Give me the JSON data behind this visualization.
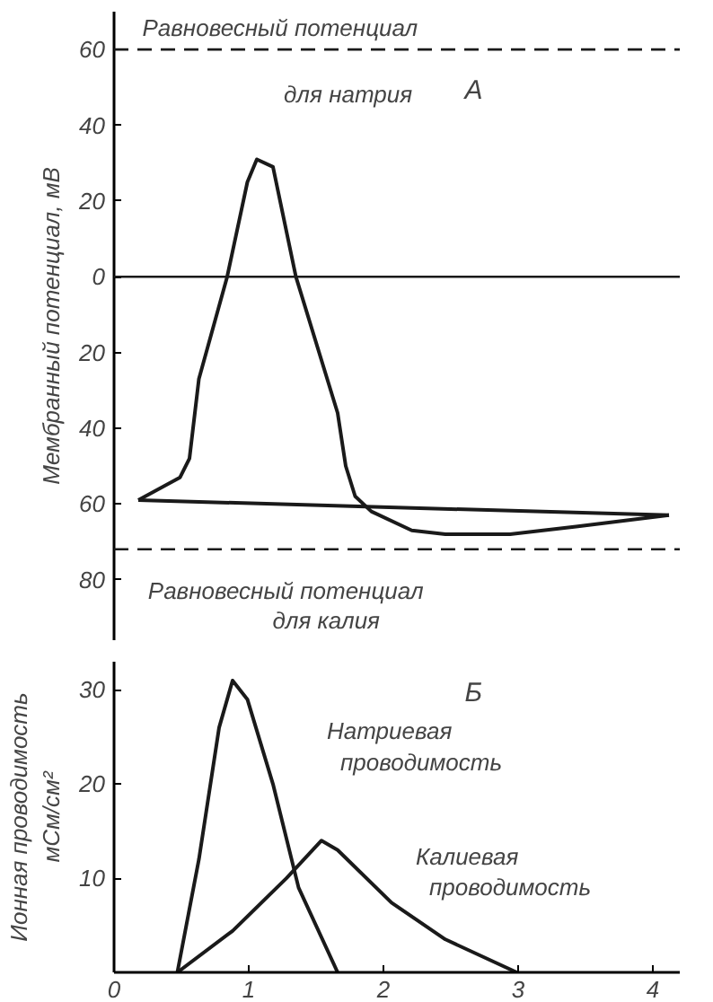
{
  "chart_data": [
    {
      "type": "line",
      "ylabel": "Мембранный потенциал, мВ",
      "annotations": [
        "А"
      ],
      "xlim": [
        0,
        4.2
      ],
      "ylim": [
        -96,
        70
      ],
      "tick_labels": "y",
      "yticks": [
        {
          "value": 60,
          "label": "60"
        },
        {
          "value": 40,
          "label": "40"
        },
        {
          "value": 20,
          "label": "20"
        },
        {
          "value": 0,
          "label": "0"
        },
        {
          "value": -20,
          "label": "20"
        },
        {
          "value": -40,
          "label": "40"
        },
        {
          "value": -60,
          "label": "60"
        },
        {
          "value": -80,
          "label": "80"
        }
      ],
      "ref_lines": [
        {
          "axis": "y",
          "value": 60,
          "label": "Равновесный потенциал для натрия",
          "line_style": "dashed"
        },
        {
          "axis": "y",
          "value": -72,
          "label": "Равновесный потенциал для калия",
          "line_style": "dashed"
        },
        {
          "axis": "y",
          "value": 0,
          "line_style": "solid"
        }
      ],
      "series": [
        {
          "color": "#1a1a1a",
          "x": [
            0.18,
            0.49,
            0.56,
            0.63,
            0.84,
            0.99,
            1.06,
            1.18,
            1.35,
            1.66,
            1.72,
            1.79,
            1.91,
            2.21,
            2.46,
            2.94,
            3.43,
            4.12
          ],
          "values": [
            -59,
            -53,
            -48,
            -27,
            0,
            25,
            31,
            29,
            0,
            -36,
            -50,
            -58,
            -62,
            -67,
            -68,
            -68,
            -66,
            -63
          ]
        },
        {
          "color": "#1a1a1a",
          "x": [
            0.18,
            4.12
          ],
          "values": [
            -59,
            -63
          ]
        }
      ]
    },
    {
      "type": "line",
      "ylabel": "Ионная проводимость мСм/см²",
      "annotations": [
        "Б"
      ],
      "xlim": [
        0,
        4.2
      ],
      "ylim": [
        0,
        33
      ],
      "xticks": [
        0,
        1,
        2,
        3,
        4
      ],
      "yticks": [
        10,
        20,
        30
      ],
      "series": [
        {
          "name": "Натриевая проводимость",
          "color": "#1a1a1a",
          "x": [
            0.47,
            0.63,
            0.78,
            0.88,
            0.99,
            1.18,
            1.37,
            1.66
          ],
          "values": [
            0,
            12,
            26,
            31,
            29,
            20,
            9,
            0
          ]
        },
        {
          "name": "Калиевая проводимость",
          "color": "#1a1a1a",
          "x": [
            0.47,
            0.88,
            1.28,
            1.54,
            1.66,
            2.06,
            2.46,
            2.99
          ],
          "values": [
            0,
            4.4,
            10,
            14,
            13,
            7.4,
            3.5,
            0
          ]
        }
      ]
    }
  ]
}
